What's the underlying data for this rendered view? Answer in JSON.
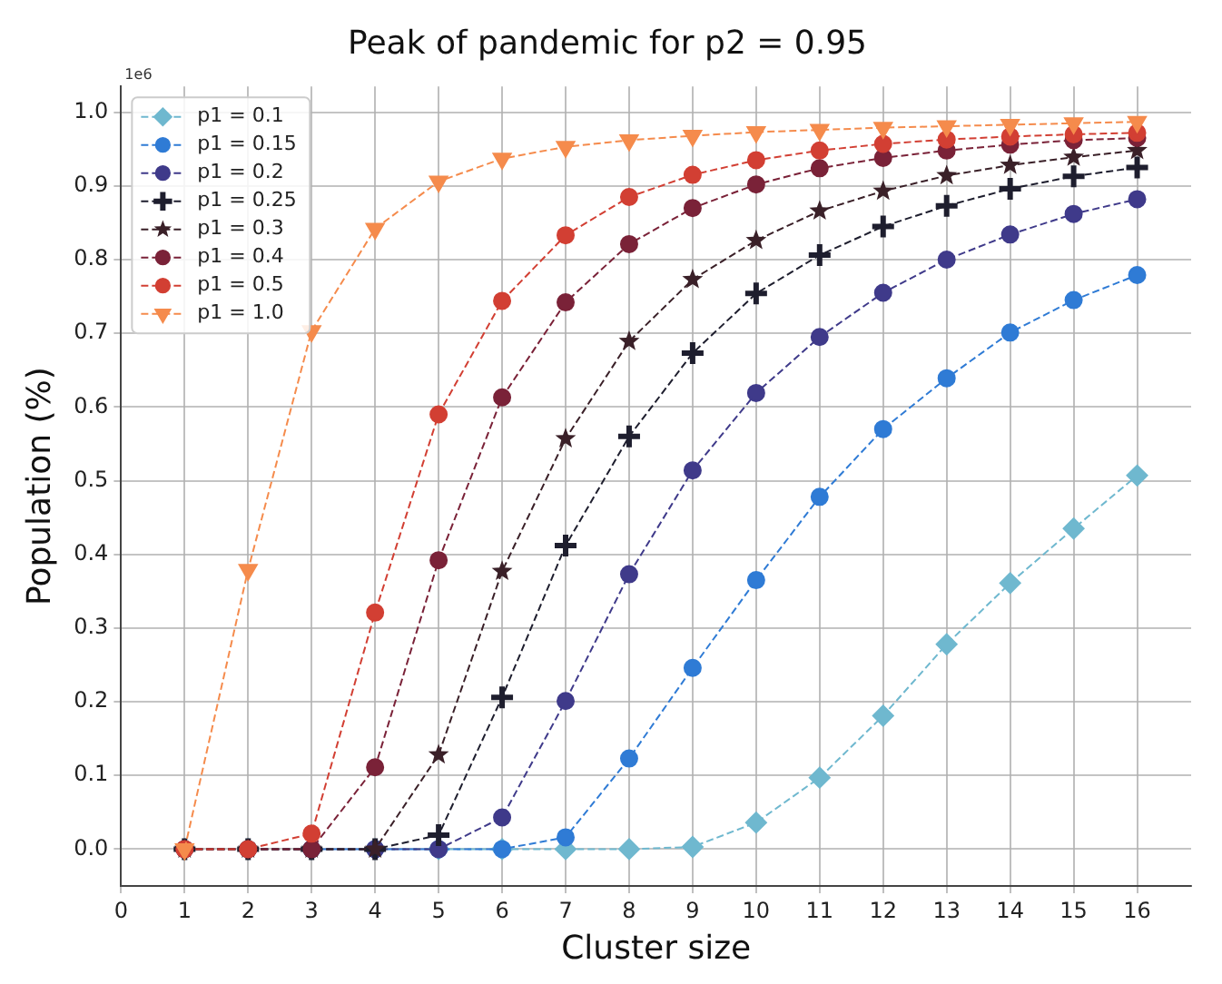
{
  "chart_data": {
    "type": "line",
    "title": "Peak of pandemic for p2 = 0.95",
    "xlabel": "Cluster size",
    "ylabel": "Population (%)",
    "annotations": [
      "1e6"
    ],
    "x": [
      1,
      2,
      3,
      4,
      5,
      6,
      7,
      8,
      9,
      10,
      11,
      12,
      13,
      14,
      15,
      16
    ],
    "xlim": [
      0,
      16.85
    ],
    "xticks": [
      0,
      1,
      2,
      3,
      4,
      5,
      6,
      7,
      8,
      9,
      10,
      11,
      12,
      13,
      14,
      15,
      16
    ],
    "ylim": [
      -0.05,
      1.035
    ],
    "yticks": [
      {
        "value": 0,
        "label": "0.0"
      },
      0.1,
      0.2,
      0.3,
      0.4,
      0.5,
      0.6,
      0.7,
      0.8,
      0.9,
      {
        "value": 1,
        "label": "1.0"
      }
    ],
    "grid": true,
    "legend": "top left",
    "line_style": "dashed",
    "series": [
      {
        "name": "p1 = 0.1",
        "color": "#6fb8cf",
        "marker": "diamond",
        "values": [
          0,
          0,
          0,
          0,
          0,
          0,
          0,
          0,
          0.003,
          0.036,
          0.097,
          0.181,
          0.278,
          0.361,
          0.435,
          0.507
        ]
      },
      {
        "name": "p1 = 0.15",
        "color": "#2f7bd5",
        "marker": "circle",
        "values": [
          null,
          null,
          0,
          0,
          0,
          0,
          0.016,
          0.123,
          0.246,
          0.365,
          0.478,
          0.57,
          0.639,
          0.701,
          0.745,
          0.779
        ]
      },
      {
        "name": "p1 = 0.2",
        "color": "#3f3a8a",
        "marker": "circle",
        "values": [
          0,
          0,
          0,
          0,
          0,
          0.043,
          0.201,
          0.373,
          0.514,
          0.619,
          0.695,
          0.755,
          0.8,
          0.834,
          0.862,
          0.882
        ]
      },
      {
        "name": "p1 = 0.25",
        "color": "#1e1e2e",
        "marker": "cross",
        "values": [
          0,
          0,
          0,
          0,
          0.019,
          0.206,
          0.412,
          0.56,
          0.673,
          0.754,
          0.806,
          0.845,
          0.873,
          0.896,
          0.913,
          0.925
        ]
      },
      {
        "name": "p1 = 0.3",
        "color": "#3a2028",
        "marker": "star",
        "values": [
          0,
          0,
          0,
          0,
          0.128,
          0.377,
          0.557,
          0.689,
          0.773,
          0.826,
          0.866,
          0.893,
          0.914,
          0.928,
          0.939,
          0.948
        ]
      },
      {
        "name": "p1 = 0.4",
        "color": "#7a2238",
        "marker": "circle",
        "values": [
          0,
          0,
          0,
          0.111,
          0.392,
          0.613,
          0.742,
          0.821,
          0.87,
          0.902,
          0.924,
          0.938,
          0.948,
          0.956,
          0.962,
          0.965
        ]
      },
      {
        "name": "p1 = 0.5",
        "color": "#d23f33",
        "marker": "circle",
        "values": [
          0,
          0,
          0.021,
          0.321,
          0.59,
          0.744,
          0.833,
          0.885,
          0.915,
          0.935,
          0.948,
          0.957,
          0.963,
          0.967,
          0.97,
          0.972
        ]
      },
      {
        "name": "p1 = 1.0",
        "color": "#f58b4c",
        "marker": "triangle",
        "values": [
          0,
          0.379,
          0.703,
          0.842,
          0.906,
          0.937,
          0.953,
          0.962,
          0.968,
          0.973,
          0.976,
          0.979,
          0.981,
          0.983,
          0.985,
          0.987
        ]
      }
    ]
  }
}
